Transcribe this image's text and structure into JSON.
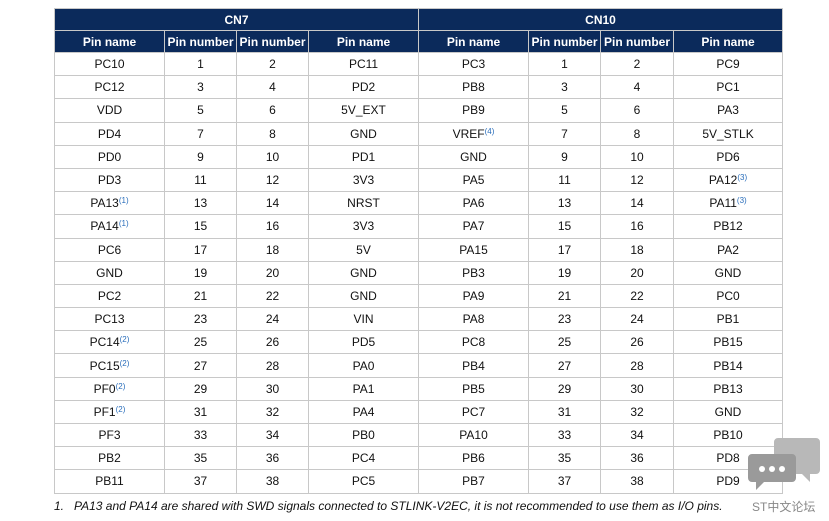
{
  "header_groups": [
    "CN7",
    "CN10"
  ],
  "columns": [
    "Pin name",
    "Pin number",
    "Pin number",
    "Pin name",
    "Pin name",
    "Pin number",
    "Pin number",
    "Pin name"
  ],
  "rows": [
    [
      "PC10",
      1,
      2,
      "PC11",
      "PC3",
      1,
      2,
      "PC9"
    ],
    [
      "PC12",
      3,
      4,
      "PD2",
      "PB8",
      3,
      4,
      "PC1"
    ],
    [
      "VDD",
      5,
      6,
      "5V_EXT",
      "PB9",
      5,
      6,
      "PA3"
    ],
    [
      "PD4",
      7,
      8,
      "GND",
      {
        "text": "VREF",
        "sup": "(4)"
      },
      7,
      8,
      "5V_STLK"
    ],
    [
      "PD0",
      9,
      10,
      "PD1",
      "GND",
      9,
      10,
      "PD6"
    ],
    [
      "PD3",
      11,
      12,
      "3V3",
      "PA5",
      11,
      12,
      {
        "text": "PA12",
        "sup": "(3)"
      }
    ],
    [
      {
        "text": "PA13",
        "sup": "(1)"
      },
      13,
      14,
      "NRST",
      "PA6",
      13,
      14,
      {
        "text": "PA11",
        "sup": "(3)"
      }
    ],
    [
      {
        "text": "PA14",
        "sup": "(1)"
      },
      15,
      16,
      "3V3",
      "PA7",
      15,
      16,
      "PB12"
    ],
    [
      "PC6",
      17,
      18,
      "5V",
      "PA15",
      17,
      18,
      "PA2"
    ],
    [
      "GND",
      19,
      20,
      "GND",
      "PB3",
      19,
      20,
      "GND"
    ],
    [
      "PC2",
      21,
      22,
      "GND",
      "PA9",
      21,
      22,
      "PC0"
    ],
    [
      "PC13",
      23,
      24,
      "VIN",
      "PA8",
      23,
      24,
      "PB1"
    ],
    [
      {
        "text": "PC14",
        "sup": "(2)"
      },
      25,
      26,
      "PD5",
      "PC8",
      25,
      26,
      "PB15"
    ],
    [
      {
        "text": "PC15",
        "sup": "(2)"
      },
      27,
      28,
      "PA0",
      "PB4",
      27,
      28,
      "PB14"
    ],
    [
      {
        "text": "PF0",
        "sup": "(2)"
      },
      29,
      30,
      "PA1",
      "PB5",
      29,
      30,
      "PB13"
    ],
    [
      {
        "text": "PF1",
        "sup": "(2)"
      },
      31,
      32,
      "PA4",
      "PC7",
      31,
      32,
      "GND"
    ],
    [
      "PF3",
      33,
      34,
      "PB0",
      "PA10",
      33,
      34,
      "PB10"
    ],
    [
      "PB2",
      35,
      36,
      "PC4",
      "PB6",
      35,
      36,
      "PD8"
    ],
    [
      "PB11",
      37,
      38,
      "PC5",
      "PB7",
      37,
      38,
      "PD9"
    ]
  ],
  "footnotes": [
    {
      "number": "1.",
      "text": "PA13 and PA14 are shared with SWD signals connected to STLINK-V2EC, it is not recommended to use them as I/O pins."
    }
  ],
  "watermark": "ST中文论坛"
}
